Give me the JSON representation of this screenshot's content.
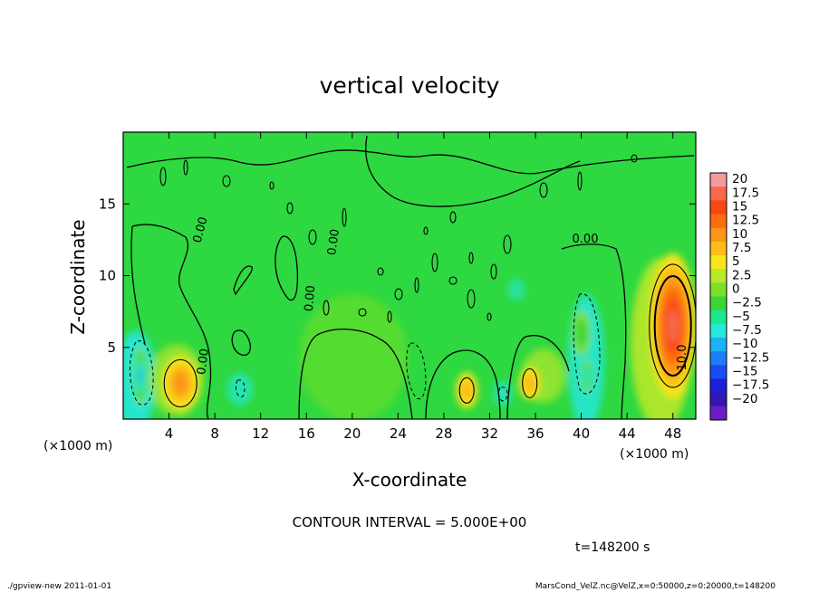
{
  "chart_data": {
    "type": "heatmap",
    "title": "vertical velocity",
    "xlabel": "X-coordinate",
    "ylabel": "Z-coordinate",
    "x_unit_label": "(×1000 m)",
    "xlim": [
      0,
      50
    ],
    "ylim": [
      0,
      20
    ],
    "x_ticks": [
      4,
      8,
      12,
      16,
      20,
      24,
      28,
      32,
      36,
      40,
      44,
      48
    ],
    "y_ticks": [
      5,
      10,
      15
    ],
    "colorbar": {
      "levels": [
        20,
        17.5,
        15,
        12.5,
        10,
        7.5,
        5,
        2.5,
        0,
        -2.5,
        -5,
        -7.5,
        -10,
        -12.5,
        -15,
        -17.5,
        -20
      ],
      "label_texts": [
        "20",
        "17.5",
        "15",
        "12.5",
        "10",
        "7.5",
        "5",
        "2.5",
        "0",
        "−2.5",
        "−5",
        "−7.5",
        "−10",
        "−12.5",
        "−15",
        "−17.5",
        "−20"
      ],
      "colors": [
        "#f59a9a",
        "#f76a4d",
        "#fa4712",
        "#fb6d10",
        "#fc9518",
        "#fcbd17",
        "#f8e51b",
        "#b7e82a",
        "#7ee025",
        "#3bd635",
        "#1ee68e",
        "#23e8dc",
        "#1bb3f5",
        "#1c7ef7",
        "#1a4bf4",
        "#1a20d8",
        "#3417b3",
        "#6a1dc7"
      ]
    },
    "contour_labels": [
      "0.00",
      "0.00",
      "0.00",
      "0.00",
      "0.00",
      "10.0"
    ],
    "contour_interval_text": "CONTOUR INTERVAL = 5.000E+00",
    "time_text": "t=148200 s",
    "features": [
      {
        "x": 48,
        "z": 6.5,
        "value": 15
      },
      {
        "x": 5,
        "z": 2.5,
        "value": 7.5
      },
      {
        "x": 30,
        "z": 2,
        "value": 5
      },
      {
        "x": 35.5,
        "z": 2.5,
        "value": 5
      },
      {
        "x": 1.5,
        "z": 3,
        "value": -12
      },
      {
        "x": 40.5,
        "z": 3,
        "value": -10
      },
      {
        "x": 40,
        "z": 6,
        "value": -5
      }
    ]
  },
  "footer": {
    "left": "./gpview-new   2011-01-01",
    "right": "MarsCond_VelZ.nc@VelZ,x=0:50000,z=0:20000,t=148200"
  }
}
